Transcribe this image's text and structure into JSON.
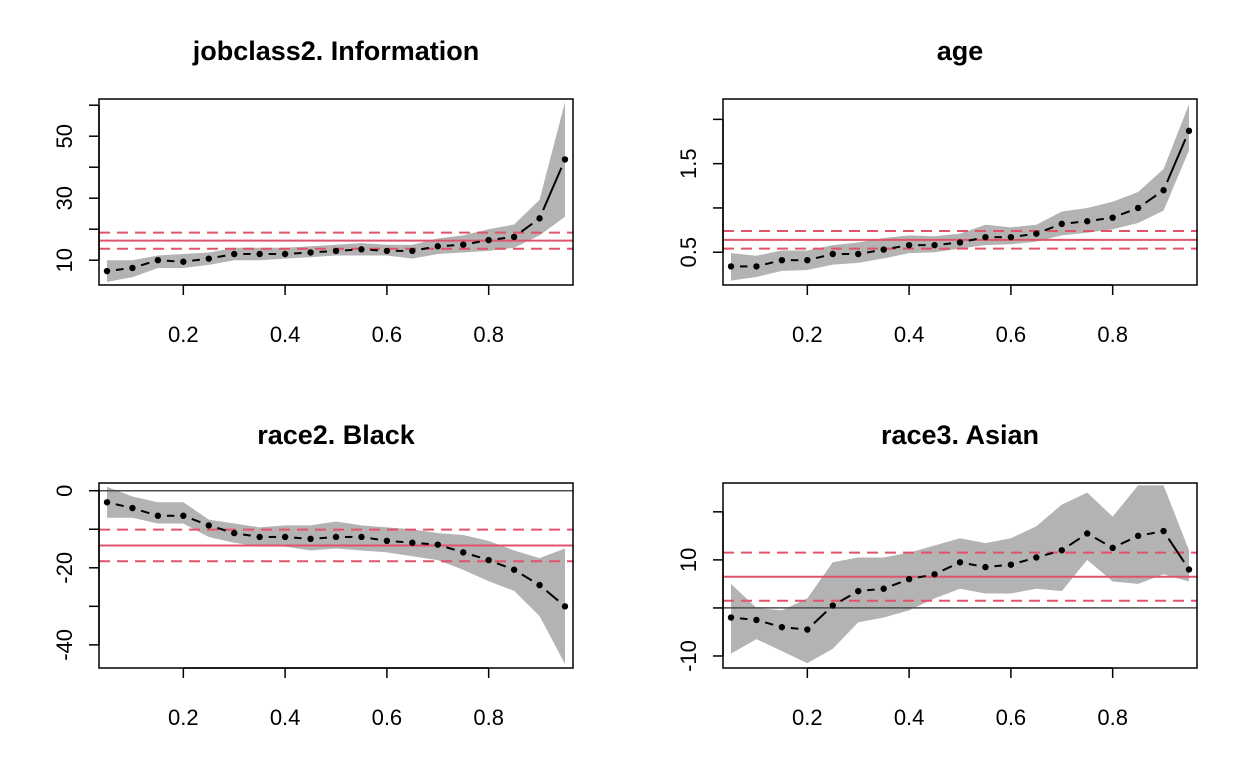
{
  "chart_data": [
    {
      "type": "line",
      "title": "jobclass2. Information",
      "xlim": [
        0.05,
        0.95
      ],
      "ylim": [
        2,
        62
      ],
      "xticks": [
        0.2,
        0.4,
        0.6,
        0.8
      ],
      "xtick_labels": [
        "0.2",
        "0.4",
        "0.6",
        "0.8"
      ],
      "yticks": [
        10,
        20,
        30,
        40,
        50,
        60
      ],
      "ytick_labels": [
        "10",
        "",
        "30",
        "",
        "50",
        ""
      ],
      "x": [
        0.05,
        0.1,
        0.15,
        0.2,
        0.25,
        0.3,
        0.35,
        0.4,
        0.45,
        0.5,
        0.55,
        0.6,
        0.65,
        0.7,
        0.75,
        0.8,
        0.85,
        0.9,
        0.95
      ],
      "estimate": [
        6.5,
        7.5,
        10,
        9.5,
        10.5,
        12,
        12,
        12,
        12.5,
        13,
        13.5,
        13,
        13,
        14.5,
        15,
        16.5,
        17.5,
        23.5,
        42.5
      ],
      "lower": [
        3,
        4.5,
        7.5,
        7.5,
        8.5,
        10,
        10,
        10.5,
        11,
        11.5,
        11.5,
        11.5,
        10.5,
        12,
        12.5,
        13,
        14,
        18,
        24
      ],
      "upper": [
        10,
        10,
        11.5,
        12,
        12.5,
        14,
        14,
        14,
        14.5,
        15,
        15.5,
        15,
        15,
        17,
        18,
        20,
        21.5,
        29.5,
        61
      ],
      "ols_estimate": 16.3,
      "ols_ci": [
        13.7,
        18.9
      ],
      "zero_line": false
    },
    {
      "type": "line",
      "title": "age",
      "xlim": [
        0.05,
        0.95
      ],
      "ylim": [
        0.13,
        2.23
      ],
      "xticks": [
        0.2,
        0.4,
        0.6,
        0.8
      ],
      "xtick_labels": [
        "0.2",
        "0.4",
        "0.6",
        "0.8"
      ],
      "yticks": [
        0.5,
        1.0,
        1.5,
        2.0
      ],
      "ytick_labels": [
        "0.5",
        "",
        "1.5",
        ""
      ],
      "x": [
        0.05,
        0.1,
        0.15,
        0.2,
        0.25,
        0.3,
        0.35,
        0.4,
        0.45,
        0.5,
        0.55,
        0.6,
        0.65,
        0.7,
        0.75,
        0.8,
        0.85,
        0.9,
        0.95
      ],
      "estimate": [
        0.34,
        0.34,
        0.41,
        0.41,
        0.48,
        0.48,
        0.53,
        0.58,
        0.58,
        0.61,
        0.67,
        0.67,
        0.71,
        0.82,
        0.85,
        0.89,
        1.0,
        1.2,
        1.87
      ],
      "lower": [
        0.18,
        0.22,
        0.29,
        0.3,
        0.36,
        0.38,
        0.43,
        0.49,
        0.5,
        0.54,
        0.58,
        0.59,
        0.62,
        0.69,
        0.72,
        0.76,
        0.83,
        0.97,
        1.65
      ],
      "upper": [
        0.49,
        0.46,
        0.52,
        0.52,
        0.58,
        0.61,
        0.66,
        0.69,
        0.68,
        0.71,
        0.81,
        0.78,
        0.81,
        0.96,
        1.0,
        1.07,
        1.18,
        1.44,
        2.17
      ],
      "ols_estimate": 0.64,
      "ols_ci": [
        0.54,
        0.74
      ],
      "zero_line": false
    },
    {
      "type": "line",
      "title": "race2. Black",
      "xlim": [
        0.05,
        0.95
      ],
      "ylim": [
        -46,
        2
      ],
      "xticks": [
        0.2,
        0.4,
        0.6,
        0.8
      ],
      "xtick_labels": [
        "0.2",
        "0.4",
        "0.6",
        "0.8"
      ],
      "yticks": [
        0,
        -10,
        -20,
        -30,
        -40
      ],
      "ytick_labels": [
        "0",
        "",
        "-20",
        "",
        "-40"
      ],
      "x": [
        0.05,
        0.1,
        0.15,
        0.2,
        0.25,
        0.3,
        0.35,
        0.4,
        0.45,
        0.5,
        0.55,
        0.6,
        0.65,
        0.7,
        0.75,
        0.8,
        0.85,
        0.9,
        0.95
      ],
      "estimate": [
        -3,
        -4.5,
        -6.5,
        -6.5,
        -9,
        -11,
        -12,
        -12,
        -12.5,
        -12,
        -12,
        -13,
        -13.5,
        -14,
        -16,
        -18,
        -20.5,
        -24.5,
        -30
      ],
      "lower": [
        -7,
        -7,
        -8.5,
        -8.5,
        -12,
        -13.5,
        -14.5,
        -14.5,
        -15.5,
        -15,
        -15.5,
        -16,
        -17,
        -18,
        -20.5,
        -23.5,
        -26,
        -32.5,
        -45
      ],
      "upper": [
        1,
        -1.5,
        -3,
        -3,
        -7.5,
        -8.5,
        -9.5,
        -9,
        -9,
        -8,
        -9,
        -9.5,
        -10,
        -11,
        -11.5,
        -13,
        -15.5,
        -17.5,
        -15
      ],
      "ols_estimate": -14.2,
      "ols_ci": [
        -18.3,
        -10.1
      ],
      "zero_line": true
    },
    {
      "type": "line",
      "title": "race3. Asian",
      "xlim": [
        0.05,
        0.95
      ],
      "ylim": [
        -12.5,
        26
      ],
      "xticks": [
        0.2,
        0.4,
        0.6,
        0.8
      ],
      "xtick_labels": [
        "0.2",
        "0.4",
        "0.6",
        "0.8"
      ],
      "yticks": [
        -10,
        0,
        10,
        20
      ],
      "ytick_labels": [
        "-10",
        "",
        "10",
        ""
      ],
      "x": [
        0.05,
        0.1,
        0.15,
        0.2,
        0.25,
        0.3,
        0.35,
        0.4,
        0.45,
        0.5,
        0.55,
        0.6,
        0.65,
        0.7,
        0.75,
        0.8,
        0.85,
        0.9,
        0.95
      ],
      "estimate": [
        -2,
        -2.5,
        -4,
        -4.5,
        0.5,
        3.5,
        4,
        6,
        7,
        9.5,
        8.5,
        9,
        10.5,
        12,
        15.5,
        12.5,
        15,
        16,
        8
      ],
      "lower": [
        -9.5,
        -6.5,
        -9,
        -11.5,
        -8.5,
        -3,
        -2,
        -0.5,
        2,
        4,
        3,
        3,
        4,
        3.5,
        10,
        5.5,
        5,
        7,
        5.5
      ],
      "upper": [
        5,
        0,
        -0.5,
        2,
        9.5,
        10.5,
        10.5,
        11.5,
        13,
        14.5,
        13.5,
        14.5,
        17,
        21.5,
        24,
        19,
        25.5,
        25.5,
        12
      ],
      "ols_estimate": 6.5,
      "ols_ci": [
        1.5,
        11.5
      ],
      "zero_line": true
    }
  ],
  "colors": {
    "band": "#b3b3b3",
    "ols": "#df536b",
    "axis": "#000000",
    "zero_line": "#4d4d4d"
  }
}
